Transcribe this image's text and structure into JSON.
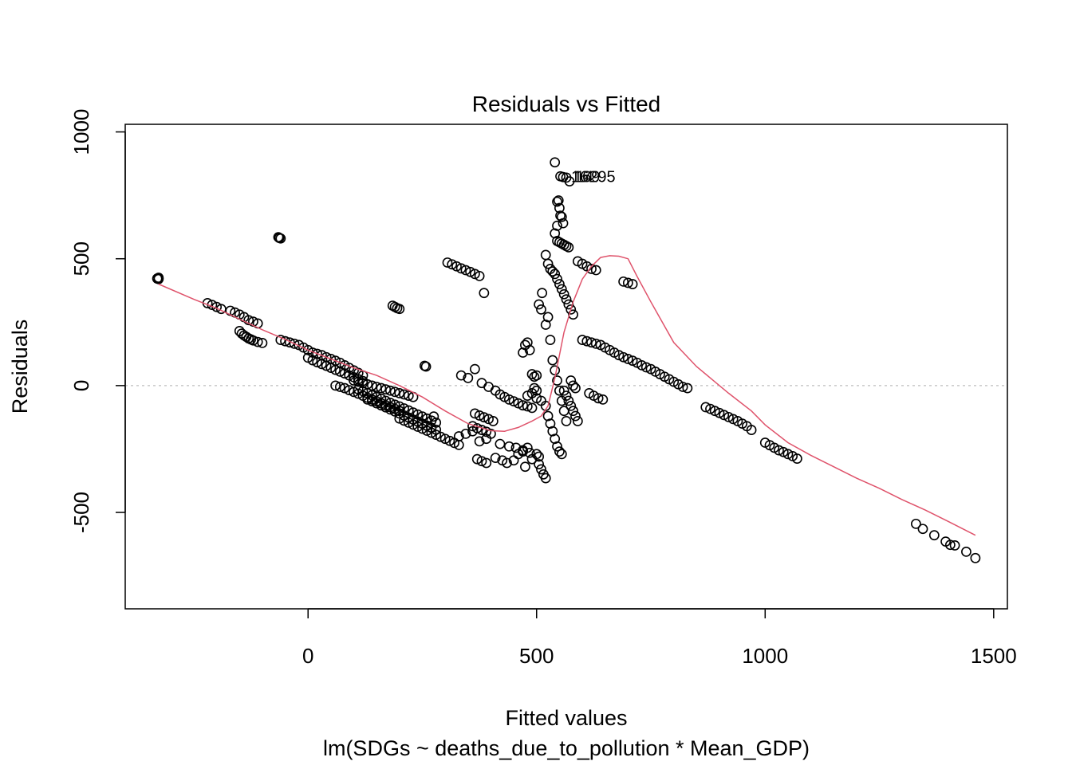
{
  "chart_data": {
    "type": "scatter",
    "title": "Residuals vs Fitted",
    "xlabel": "Fitted values",
    "ylabel": "Residuals",
    "subtitle": "lm(SDGs ~ deaths_due_to_pollution * Mean_GDP)",
    "xlim": [
      -400,
      1530
    ],
    "ylim": [
      -880,
      1030
    ],
    "x_ticks": [
      0,
      500,
      1000,
      1500
    ],
    "y_ticks": [
      -500,
      0,
      500,
      1000
    ],
    "reference_line": 0,
    "colors": {
      "points": "#000000",
      "smooth": "#DF536B",
      "reference": "#BEBEBE"
    },
    "outlier_labels": [
      {
        "x": 565,
        "y": 825,
        "text": "16295"
      },
      {
        "x": 570,
        "y": 825,
        "text": "169"
      },
      {
        "x": 575,
        "y": 825,
        "text": "14"
      }
    ],
    "points": [
      [
        -327,
        425
      ],
      [
        -327,
        420
      ],
      [
        -330,
        422
      ],
      [
        -220,
        325
      ],
      [
        -210,
        318
      ],
      [
        -200,
        310
      ],
      [
        -190,
        302
      ],
      [
        -170,
        295
      ],
      [
        -160,
        288
      ],
      [
        -150,
        280
      ],
      [
        -140,
        270
      ],
      [
        -130,
        258
      ],
      [
        -120,
        252
      ],
      [
        -110,
        245
      ],
      [
        -150,
        215
      ],
      [
        -145,
        205
      ],
      [
        -140,
        198
      ],
      [
        -135,
        192
      ],
      [
        -130,
        186
      ],
      [
        -125,
        182
      ],
      [
        -120,
        178
      ],
      [
        -110,
        172
      ],
      [
        -100,
        168
      ],
      [
        -65,
        585
      ],
      [
        -63,
        582
      ],
      [
        -60,
        580
      ],
      [
        -60,
        180
      ],
      [
        -50,
        175
      ],
      [
        -40,
        170
      ],
      [
        -30,
        165
      ],
      [
        -20,
        160
      ],
      [
        -10,
        150
      ],
      [
        0,
        140
      ],
      [
        10,
        130
      ],
      [
        20,
        125
      ],
      [
        30,
        120
      ],
      [
        40,
        112
      ],
      [
        50,
        105
      ],
      [
        60,
        98
      ],
      [
        70,
        90
      ],
      [
        80,
        80
      ],
      [
        90,
        70
      ],
      [
        100,
        60
      ],
      [
        110,
        50
      ],
      [
        120,
        40
      ],
      [
        0,
        110
      ],
      [
        10,
        100
      ],
      [
        20,
        92
      ],
      [
        30,
        85
      ],
      [
        40,
        78
      ],
      [
        50,
        70
      ],
      [
        60,
        62
      ],
      [
        70,
        55
      ],
      [
        80,
        48
      ],
      [
        90,
        40
      ],
      [
        100,
        33
      ],
      [
        110,
        25
      ],
      [
        120,
        18
      ],
      [
        60,
        0
      ],
      [
        70,
        -5
      ],
      [
        80,
        -10
      ],
      [
        90,
        -18
      ],
      [
        100,
        -25
      ],
      [
        110,
        -32
      ],
      [
        120,
        -40
      ],
      [
        130,
        -48
      ],
      [
        140,
        -55
      ],
      [
        150,
        -62
      ],
      [
        160,
        -70
      ],
      [
        170,
        -78
      ],
      [
        180,
        -85
      ],
      [
        190,
        -92
      ],
      [
        200,
        -100
      ],
      [
        110,
        -15
      ],
      [
        120,
        -22
      ],
      [
        130,
        -30
      ],
      [
        140,
        -38
      ],
      [
        150,
        -45
      ],
      [
        160,
        -52
      ],
      [
        170,
        -60
      ],
      [
        180,
        -68
      ],
      [
        190,
        -75
      ],
      [
        200,
        -82
      ],
      [
        210,
        -90
      ],
      [
        220,
        -98
      ],
      [
        230,
        -106
      ],
      [
        240,
        -114
      ],
      [
        250,
        -122
      ],
      [
        260,
        -130
      ],
      [
        270,
        -138
      ],
      [
        280,
        -146
      ],
      [
        130,
        -55
      ],
      [
        140,
        -62
      ],
      [
        150,
        -70
      ],
      [
        160,
        -78
      ],
      [
        170,
        -86
      ],
      [
        180,
        -94
      ],
      [
        190,
        -102
      ],
      [
        200,
        -110
      ],
      [
        210,
        -118
      ],
      [
        220,
        -126
      ],
      [
        230,
        -134
      ],
      [
        240,
        -142
      ],
      [
        250,
        -150
      ],
      [
        260,
        -158
      ],
      [
        270,
        -166
      ],
      [
        280,
        -174
      ],
      [
        200,
        -130
      ],
      [
        210,
        -138
      ],
      [
        220,
        -146
      ],
      [
        230,
        -154
      ],
      [
        240,
        -162
      ],
      [
        250,
        -170
      ],
      [
        260,
        -178
      ],
      [
        270,
        -186
      ],
      [
        280,
        -194
      ],
      [
        290,
        -202
      ],
      [
        300,
        -210
      ],
      [
        310,
        -218
      ],
      [
        320,
        -226
      ],
      [
        330,
        -234
      ],
      [
        100,
        20
      ],
      [
        110,
        15
      ],
      [
        120,
        10
      ],
      [
        130,
        5
      ],
      [
        140,
        0
      ],
      [
        150,
        -5
      ],
      [
        160,
        -10
      ],
      [
        170,
        -15
      ],
      [
        180,
        -20
      ],
      [
        190,
        -25
      ],
      [
        200,
        -30
      ],
      [
        210,
        -35
      ],
      [
        220,
        -40
      ],
      [
        230,
        -45
      ],
      [
        185,
        315
      ],
      [
        190,
        310
      ],
      [
        195,
        305
      ],
      [
        200,
        302
      ],
      [
        255,
        78
      ],
      [
        258,
        75
      ],
      [
        275,
        -122
      ],
      [
        305,
        485
      ],
      [
        315,
        478
      ],
      [
        325,
        470
      ],
      [
        335,
        462
      ],
      [
        345,
        455
      ],
      [
        355,
        448
      ],
      [
        365,
        440
      ],
      [
        375,
        432
      ],
      [
        385,
        365
      ],
      [
        335,
        40
      ],
      [
        350,
        30
      ],
      [
        365,
        65
      ],
      [
        380,
        10
      ],
      [
        395,
        -5
      ],
      [
        410,
        -20
      ],
      [
        420,
        -35
      ],
      [
        430,
        -45
      ],
      [
        440,
        -55
      ],
      [
        450,
        -62
      ],
      [
        460,
        -70
      ],
      [
        470,
        -78
      ],
      [
        480,
        -82
      ],
      [
        490,
        -88
      ],
      [
        365,
        -110
      ],
      [
        375,
        -118
      ],
      [
        385,
        -125
      ],
      [
        395,
        -132
      ],
      [
        405,
        -140
      ],
      [
        360,
        -160
      ],
      [
        370,
        -168
      ],
      [
        380,
        -175
      ],
      [
        390,
        -182
      ],
      [
        400,
        -190
      ],
      [
        330,
        -200
      ],
      [
        345,
        -190
      ],
      [
        360,
        -180
      ],
      [
        375,
        -220
      ],
      [
        390,
        -210
      ],
      [
        370,
        -290
      ],
      [
        380,
        -298
      ],
      [
        390,
        -305
      ],
      [
        410,
        -285
      ],
      [
        425,
        -295
      ],
      [
        435,
        -305
      ],
      [
        450,
        -295
      ],
      [
        460,
        -270
      ],
      [
        470,
        -255
      ],
      [
        480,
        -245
      ],
      [
        500,
        -270
      ],
      [
        505,
        -310
      ],
      [
        510,
        -330
      ],
      [
        515,
        -350
      ],
      [
        520,
        -365
      ],
      [
        505,
        -280
      ],
      [
        490,
        -290
      ],
      [
        475,
        -320
      ],
      [
        420,
        -230
      ],
      [
        440,
        -240
      ],
      [
        455,
        -245
      ],
      [
        470,
        -260
      ],
      [
        485,
        -265
      ],
      [
        470,
        130
      ],
      [
        475,
        160
      ],
      [
        480,
        170
      ],
      [
        485,
        140
      ],
      [
        480,
        -40
      ],
      [
        490,
        -30
      ],
      [
        500,
        -50
      ],
      [
        510,
        -60
      ],
      [
        490,
        45
      ],
      [
        495,
        35
      ],
      [
        500,
        40
      ],
      [
        495,
        -10
      ],
      [
        500,
        -20
      ],
      [
        505,
        320
      ],
      [
        510,
        300
      ],
      [
        512,
        365
      ],
      [
        520,
        240
      ],
      [
        525,
        270
      ],
      [
        530,
        180
      ],
      [
        535,
        100
      ],
      [
        540,
        60
      ],
      [
        545,
        20
      ],
      [
        550,
        -20
      ],
      [
        555,
        -60
      ],
      [
        560,
        -100
      ],
      [
        565,
        -140
      ],
      [
        520,
        515
      ],
      [
        525,
        480
      ],
      [
        530,
        460
      ],
      [
        535,
        450
      ],
      [
        540,
        440
      ],
      [
        545,
        420
      ],
      [
        550,
        400
      ],
      [
        555,
        380
      ],
      [
        560,
        360
      ],
      [
        565,
        340
      ],
      [
        570,
        320
      ],
      [
        575,
        300
      ],
      [
        580,
        280
      ],
      [
        520,
        -80
      ],
      [
        525,
        -120
      ],
      [
        530,
        -150
      ],
      [
        535,
        -180
      ],
      [
        540,
        -210
      ],
      [
        545,
        -240
      ],
      [
        550,
        -260
      ],
      [
        555,
        -270
      ],
      [
        540,
        880
      ],
      [
        545,
        725
      ],
      [
        548,
        730
      ],
      [
        550,
        700
      ],
      [
        552,
        670
      ],
      [
        555,
        665
      ],
      [
        558,
        640
      ],
      [
        545,
        630
      ],
      [
        540,
        600
      ],
      [
        545,
        570
      ],
      [
        550,
        565
      ],
      [
        555,
        560
      ],
      [
        560,
        555
      ],
      [
        565,
        550
      ],
      [
        570,
        545
      ],
      [
        552,
        825
      ],
      [
        558,
        822
      ],
      [
        565,
        820
      ],
      [
        572,
        805
      ],
      [
        560,
        -20
      ],
      [
        565,
        -40
      ],
      [
        570,
        -60
      ],
      [
        575,
        -80
      ],
      [
        580,
        -100
      ],
      [
        585,
        -120
      ],
      [
        590,
        -140
      ],
      [
        575,
        20
      ],
      [
        580,
        0
      ],
      [
        585,
        -10
      ],
      [
        590,
        490
      ],
      [
        600,
        480
      ],
      [
        610,
        470
      ],
      [
        620,
        460
      ],
      [
        630,
        455
      ],
      [
        600,
        180
      ],
      [
        610,
        175
      ],
      [
        620,
        170
      ],
      [
        630,
        165
      ],
      [
        640,
        160
      ],
      [
        650,
        150
      ],
      [
        660,
        140
      ],
      [
        670,
        130
      ],
      [
        680,
        120
      ],
      [
        690,
        112
      ],
      [
        700,
        105
      ],
      [
        710,
        98
      ],
      [
        720,
        90
      ],
      [
        730,
        80
      ],
      [
        740,
        72
      ],
      [
        750,
        65
      ],
      [
        760,
        55
      ],
      [
        770,
        45
      ],
      [
        780,
        35
      ],
      [
        790,
        25
      ],
      [
        800,
        15
      ],
      [
        810,
        5
      ],
      [
        820,
        -5
      ],
      [
        830,
        -10
      ],
      [
        615,
        -30
      ],
      [
        625,
        -40
      ],
      [
        635,
        -50
      ],
      [
        645,
        -55
      ],
      [
        690,
        410
      ],
      [
        700,
        405
      ],
      [
        710,
        400
      ],
      [
        870,
        -85
      ],
      [
        880,
        -92
      ],
      [
        890,
        -100
      ],
      [
        900,
        -108
      ],
      [
        910,
        -116
      ],
      [
        920,
        -124
      ],
      [
        930,
        -132
      ],
      [
        940,
        -140
      ],
      [
        950,
        -150
      ],
      [
        960,
        -160
      ],
      [
        970,
        -175
      ],
      [
        1000,
        -225
      ],
      [
        1010,
        -235
      ],
      [
        1020,
        -245
      ],
      [
        1030,
        -255
      ],
      [
        1040,
        -262
      ],
      [
        1050,
        -270
      ],
      [
        1060,
        -278
      ],
      [
        1070,
        -288
      ],
      [
        1330,
        -545
      ],
      [
        1345,
        -565
      ],
      [
        1370,
        -590
      ],
      [
        1395,
        -615
      ],
      [
        1405,
        -628
      ],
      [
        1415,
        -630
      ],
      [
        1440,
        -655
      ],
      [
        1460,
        -680
      ]
    ],
    "smooth": [
      [
        -327,
        400
      ],
      [
        -250,
        340
      ],
      [
        -200,
        305
      ],
      [
        -150,
        262
      ],
      [
        -100,
        220
      ],
      [
        -50,
        182
      ],
      [
        0,
        140
      ],
      [
        50,
        105
      ],
      [
        100,
        70
      ],
      [
        150,
        40
      ],
      [
        200,
        0
      ],
      [
        250,
        -45
      ],
      [
        300,
        -100
      ],
      [
        350,
        -150
      ],
      [
        400,
        -178
      ],
      [
        430,
        -180
      ],
      [
        460,
        -165
      ],
      [
        490,
        -140
      ],
      [
        510,
        -120
      ],
      [
        525,
        -80
      ],
      [
        540,
        30
      ],
      [
        560,
        210
      ],
      [
        580,
        330
      ],
      [
        600,
        420
      ],
      [
        620,
        470
      ],
      [
        640,
        505
      ],
      [
        660,
        512
      ],
      [
        680,
        510
      ],
      [
        700,
        500
      ],
      [
        720,
        430
      ],
      [
        750,
        330
      ],
      [
        800,
        170
      ],
      [
        850,
        75
      ],
      [
        880,
        30
      ],
      [
        920,
        -30
      ],
      [
        970,
        -100
      ],
      [
        1000,
        -155
      ],
      [
        1050,
        -225
      ],
      [
        1100,
        -275
      ],
      [
        1150,
        -320
      ],
      [
        1200,
        -365
      ],
      [
        1250,
        -405
      ],
      [
        1300,
        -450
      ],
      [
        1350,
        -490
      ],
      [
        1400,
        -535
      ],
      [
        1460,
        -590
      ]
    ]
  }
}
